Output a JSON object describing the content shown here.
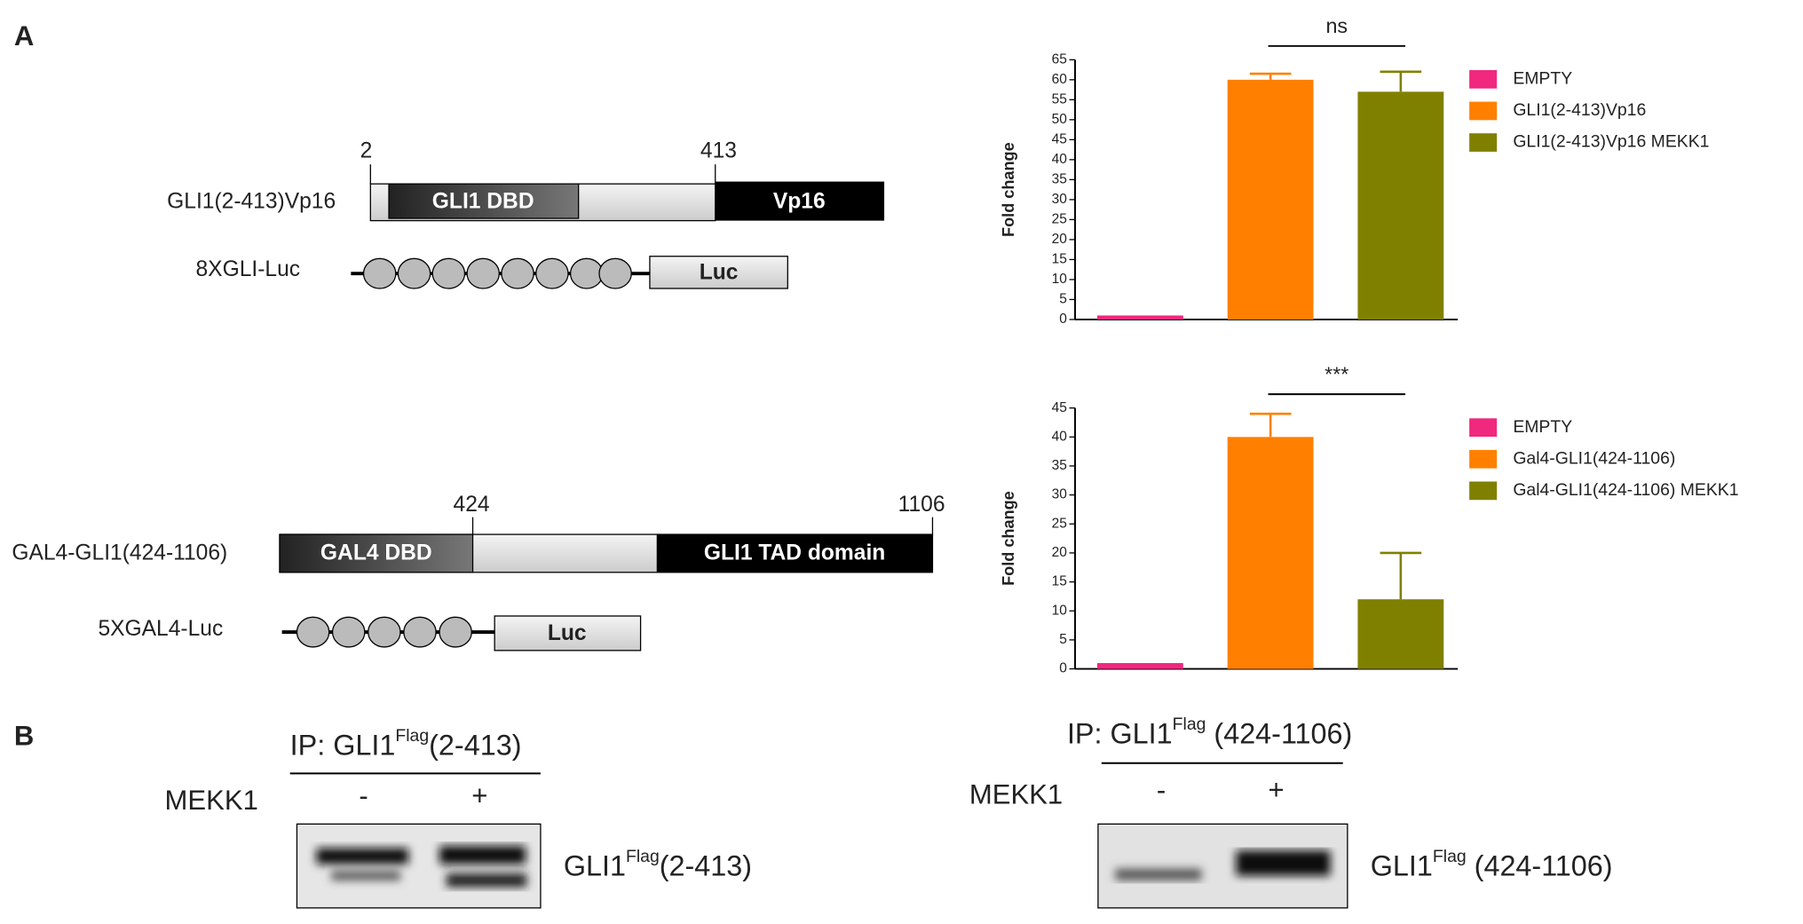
{
  "panels": {
    "a": "A",
    "b": "B"
  },
  "chart_data": [
    {
      "type": "bar",
      "categories": [
        null
      ],
      "ylabel": "Fold change",
      "ylim": [
        0,
        65
      ],
      "yticks": [
        0,
        5,
        10,
        15,
        20,
        25,
        30,
        35,
        40,
        45,
        50,
        55,
        60,
        65
      ],
      "annotation": "ns",
      "series": [
        {
          "name": "EMPTY",
          "color": "#f0287e",
          "values": [
            1
          ],
          "errors": [
            0
          ]
        },
        {
          "name": "GLI1(2-413)Vp16",
          "color": "#ff8000",
          "values": [
            60
          ],
          "errors": [
            1.5
          ]
        },
        {
          "name": "GLI1(2-413)Vp16 MEKK1",
          "color": "#808000",
          "values": [
            57
          ],
          "errors": [
            5
          ]
        }
      ]
    },
    {
      "type": "bar",
      "categories": [
        null
      ],
      "ylabel": "Fold change",
      "ylim": [
        0,
        45
      ],
      "yticks": [
        0,
        5,
        10,
        15,
        20,
        25,
        30,
        35,
        40,
        45
      ],
      "annotation": "***",
      "series": [
        {
          "name": "EMPTY",
          "color": "#f0287e",
          "values": [
            1
          ],
          "errors": [
            0
          ]
        },
        {
          "name": "Gal4-GLI1(424-1106)",
          "color": "#ff8000",
          "values": [
            40
          ],
          "errors": [
            4
          ]
        },
        {
          "name": "Gal4-GLI1(424-1106) MEKK1",
          "color": "#808000",
          "values": [
            12
          ],
          "errors": [
            8
          ]
        }
      ]
    }
  ],
  "diagram": {
    "c1": {
      "start": "2",
      "end": "413",
      "label": "GLI1(2-413)Vp16",
      "dbd": "GLI1 DBD",
      "tad": "Vp16"
    },
    "r1": {
      "label": "8XGLI-Luc",
      "luc": "Luc"
    },
    "c2": {
      "start": "424",
      "end": "1106",
      "label": "GAL4-GLI1(424-1106)",
      "dbd": "GAL4 DBD",
      "tad": "GLI1 TAD domain"
    },
    "r2": {
      "label": "5XGAL4-Luc",
      "luc": "Luc"
    }
  },
  "blots": [
    {
      "ip": "IP: GLI1",
      "sup": "Flag",
      "range": "(2-413)",
      "row": "MEKK1",
      "minus": "-",
      "plus": "+",
      "band": "GLI1",
      "bandsup": "Flag",
      "bandrange": "(2-413)"
    },
    {
      "ip": "IP: GLI1",
      "sup": "Flag",
      "range": " (424-1106)",
      "row": "MEKK1",
      "minus": "-",
      "plus": "+",
      "band": "GLI1",
      "bandsup": "Flag",
      "bandrange": " (424-1106)"
    }
  ]
}
